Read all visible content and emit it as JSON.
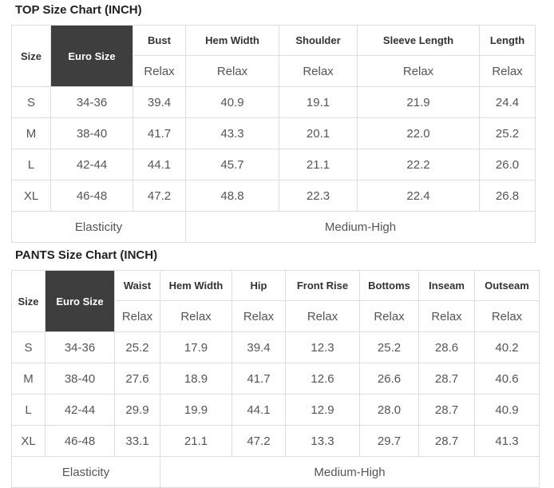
{
  "colors": {
    "euro_header_bg": "#3e3e3e",
    "euro_header_text": "#ffffff",
    "grid_border": "#dddddd",
    "title_text": "#222222",
    "header_text": "#333333",
    "cell_text": "#555555"
  },
  "tables": [
    {
      "title": "TOP Size Chart (INCH)",
      "size_header": "Size",
      "euro_header": "Euro Size",
      "columns": [
        "Bust",
        "Hem Width",
        "Shoulder",
        "Sleeve Length",
        "Length"
      ],
      "fits": [
        "Relax",
        "Relax",
        "Relax",
        "Relax",
        "Relax"
      ],
      "rows": [
        {
          "size": "S",
          "euro": "34-36",
          "values": [
            "39.4",
            "40.9",
            "19.1",
            "21.9",
            "24.4"
          ]
        },
        {
          "size": "M",
          "euro": "38-40",
          "values": [
            "41.7",
            "43.3",
            "20.1",
            "22.0",
            "25.2"
          ]
        },
        {
          "size": "L",
          "euro": "42-44",
          "values": [
            "44.1",
            "45.7",
            "21.1",
            "22.2",
            "26.0"
          ]
        },
        {
          "size": "XL",
          "euro": "46-48",
          "values": [
            "47.2",
            "48.8",
            "22.3",
            "22.4",
            "26.8"
          ]
        }
      ],
      "elasticity_label": "Elasticity",
      "elasticity_value": "Medium-High"
    },
    {
      "title": "PANTS Size Chart (INCH)",
      "size_header": "Size",
      "euro_header": "Euro Size",
      "columns": [
        "Waist",
        "Hem Width",
        "Hip",
        "Front Rise",
        "Bottoms",
        "Inseam",
        "Outseam"
      ],
      "fits": [
        "Relax",
        "Relax",
        "Relax",
        "Relax",
        "Relax",
        "Relax",
        "Relax"
      ],
      "rows": [
        {
          "size": "S",
          "euro": "34-36",
          "values": [
            "25.2",
            "17.9",
            "39.4",
            "12.3",
            "25.2",
            "28.6",
            "40.2"
          ]
        },
        {
          "size": "M",
          "euro": "38-40",
          "values": [
            "27.6",
            "18.9",
            "41.7",
            "12.6",
            "26.6",
            "28.7",
            "40.6"
          ]
        },
        {
          "size": "L",
          "euro": "42-44",
          "values": [
            "29.9",
            "19.9",
            "44.1",
            "12.9",
            "28.0",
            "28.7",
            "40.9"
          ]
        },
        {
          "size": "XL",
          "euro": "46-48",
          "values": [
            "33.1",
            "21.1",
            "47.2",
            "13.3",
            "29.7",
            "28.7",
            "41.3"
          ]
        }
      ],
      "elasticity_label": "Elasticity",
      "elasticity_value": "Medium-High"
    }
  ]
}
